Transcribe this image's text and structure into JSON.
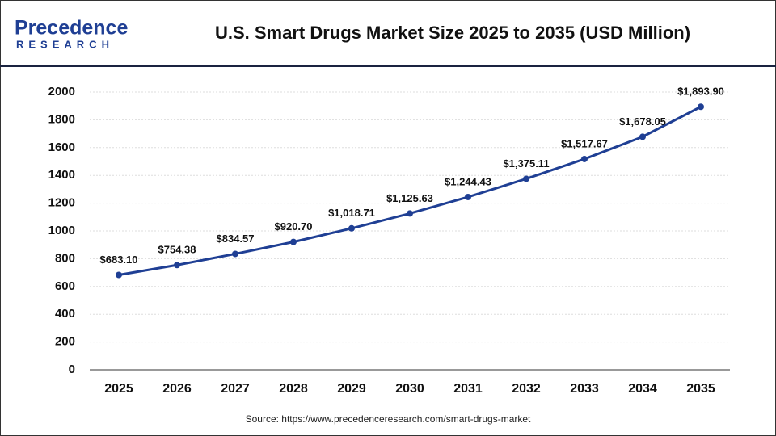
{
  "logo": {
    "name": "Precedence",
    "tagline": "RESEARCH"
  },
  "chart_data": {
    "type": "line",
    "title": "U.S. Smart Drugs Market Size 2025 to 2035 (USD Million)",
    "source": "Source: https://www.precedenceresearch.com/smart-drugs-market",
    "categories": [
      "2025",
      "2026",
      "2027",
      "2028",
      "2029",
      "2030",
      "2031",
      "2032",
      "2033",
      "2034",
      "2035"
    ],
    "values": [
      683.1,
      754.38,
      834.57,
      920.7,
      1018.71,
      1125.63,
      1244.43,
      1375.11,
      1517.67,
      1678.05,
      1893.9
    ],
    "value_labels": [
      "$683.10",
      "$754.38",
      "$834.57",
      "$920.70",
      "$1,018.71",
      "$1,125.63",
      "$1,244.43",
      "$1,375.11",
      "$1,517.67",
      "$1,678.05",
      "$1,893.90"
    ],
    "color": "#1f3f94",
    "ylim": [
      0,
      2000
    ],
    "yticks": [
      0,
      200,
      400,
      600,
      800,
      1000,
      1200,
      1400,
      1600,
      1800,
      2000
    ],
    "grid": true
  }
}
